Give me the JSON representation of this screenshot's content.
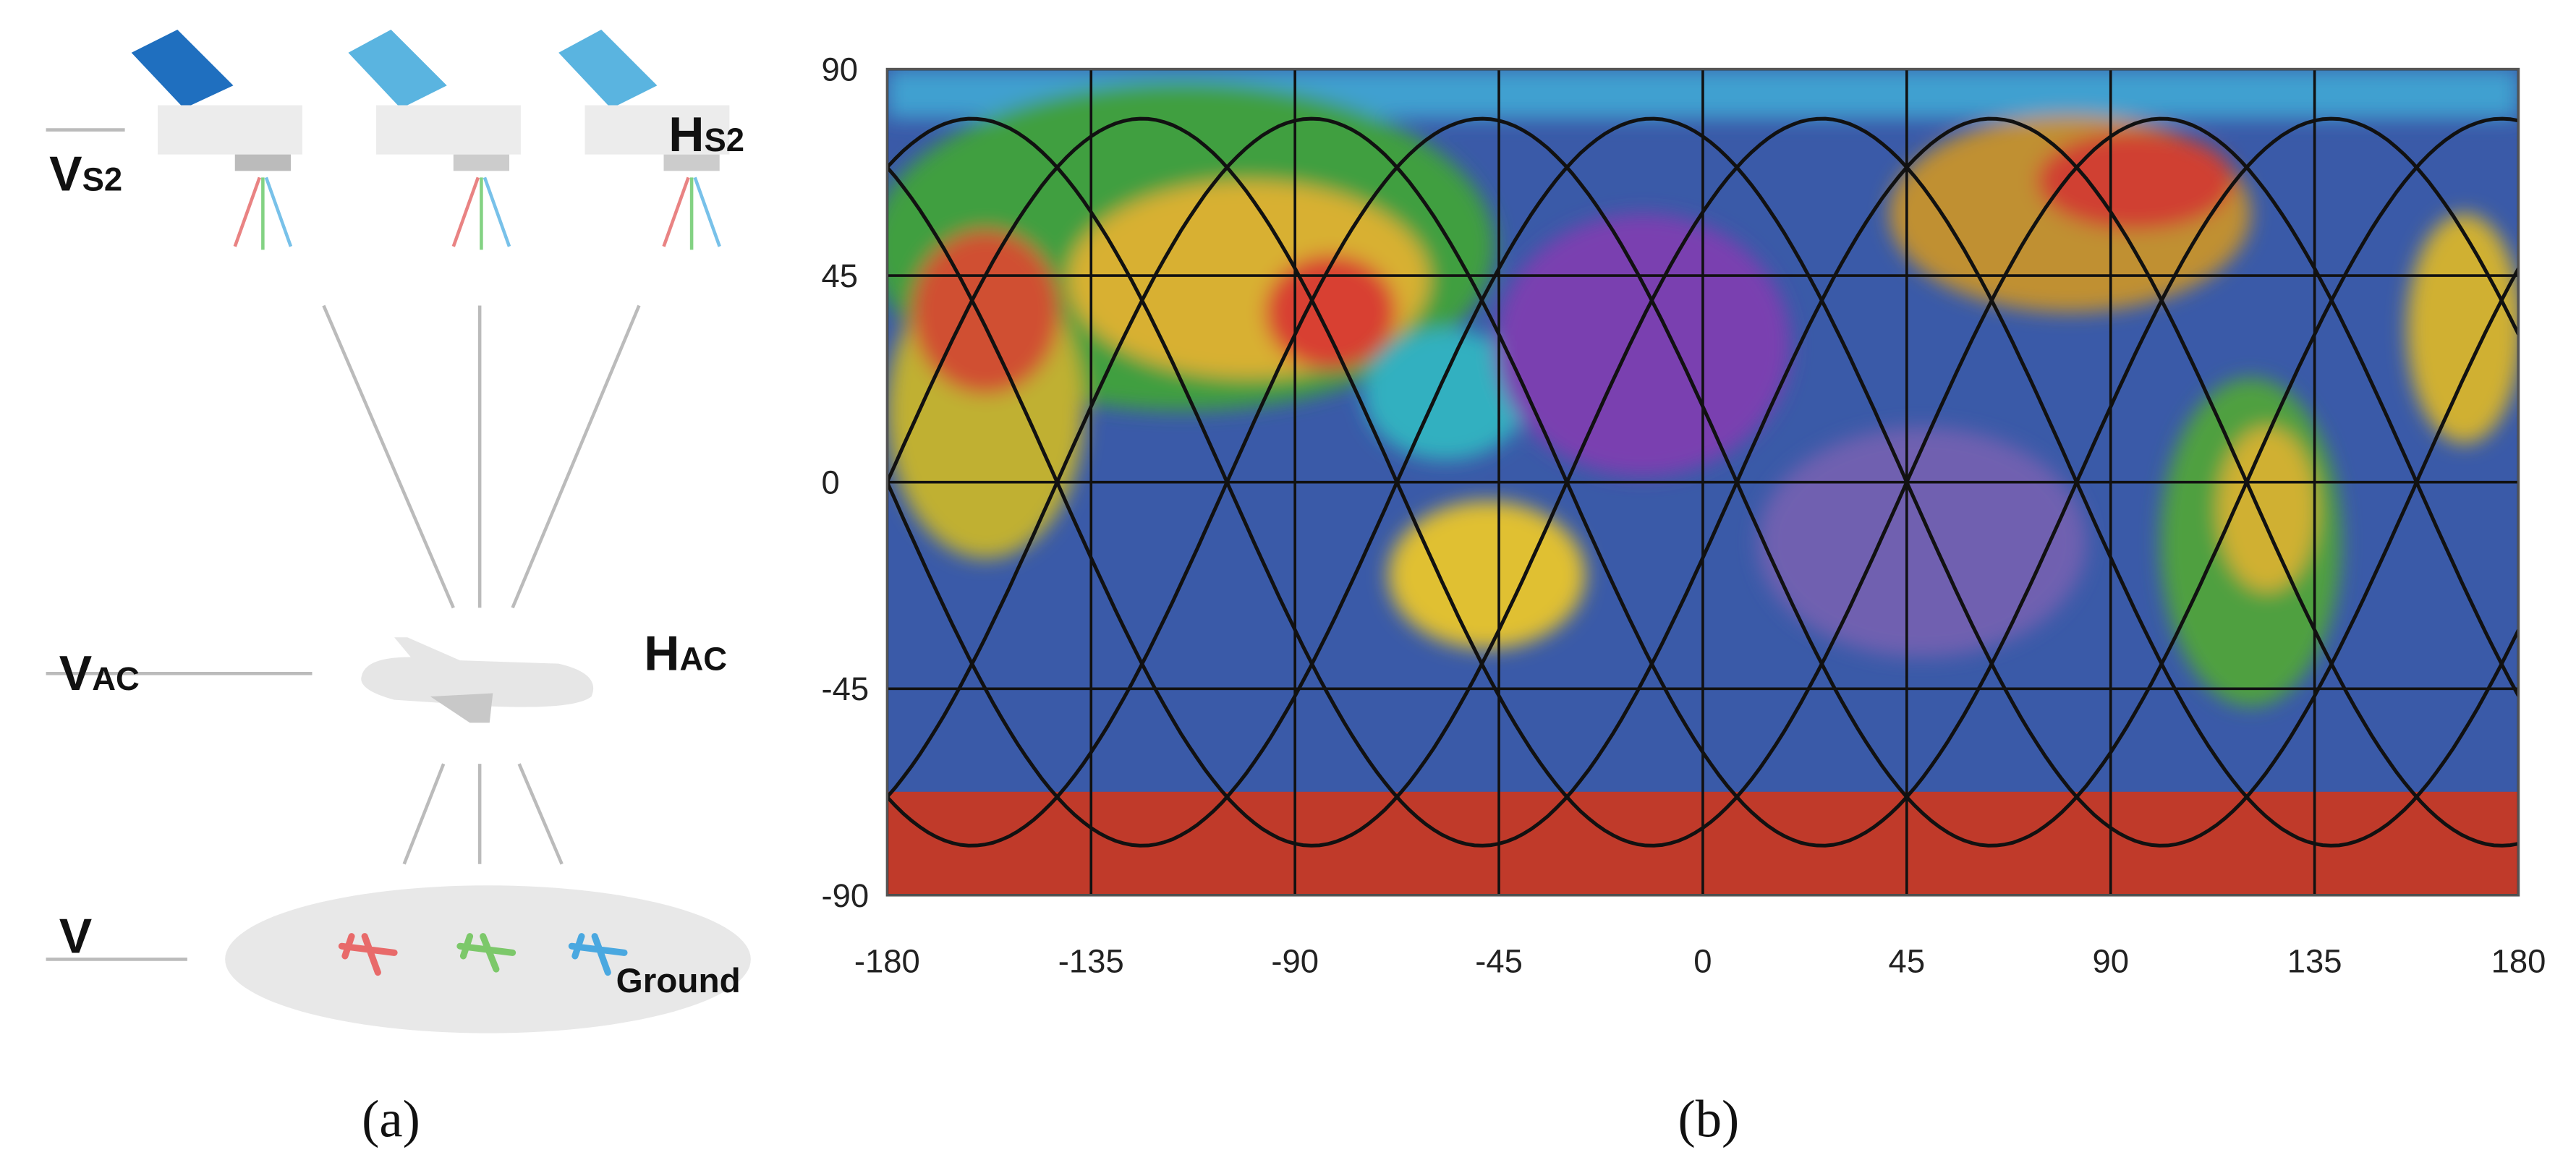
{
  "panel_a": {
    "labels": {
      "v_s2": {
        "main": "V",
        "sub": "S2"
      },
      "h_s2": {
        "main": "H",
        "sub": "S2"
      },
      "v_ac": {
        "main": "V",
        "sub": "AC"
      },
      "h_ac": {
        "main": "H",
        "sub": "AC"
      },
      "v_ground": "V",
      "ground": "Ground"
    },
    "caption": "(a)"
  },
  "panel_b": {
    "xticks": [
      -180,
      -135,
      -90,
      -45,
      0,
      45,
      90,
      135,
      180
    ],
    "yticks": [
      90,
      45,
      0,
      -45,
      -90
    ],
    "caption": "(b)"
  }
}
